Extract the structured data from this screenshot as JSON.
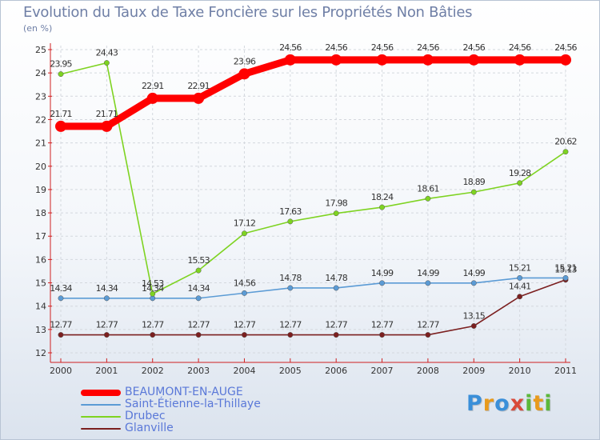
{
  "chart_data": {
    "type": "line",
    "title": "Evolution du Taux de Taxe Foncière sur les Propriétés Non Bâties",
    "ylabel": "(en %)",
    "xlabel": "",
    "categories": [
      "2000",
      "2001",
      "2002",
      "2003",
      "2004",
      "2005",
      "2006",
      "2007",
      "2008",
      "2009",
      "2010",
      "2011"
    ],
    "ylim": [
      12,
      25
    ],
    "yticks": [
      12,
      13,
      14,
      15,
      16,
      17,
      18,
      19,
      20,
      21,
      22,
      23,
      24,
      25
    ],
    "series": [
      {
        "name": "BEAUMONT-EN-AUGE",
        "color": "#ff0000",
        "values": [
          21.71,
          21.71,
          22.91,
          22.91,
          23.96,
          24.56,
          24.56,
          24.56,
          24.56,
          24.56,
          24.56,
          24.56
        ],
        "labels": [
          "21.71",
          "21.71",
          "22.91",
          "22.91",
          "23.96",
          "24.56",
          "24.56",
          "24.56",
          "24.56",
          "24.56",
          "24.56",
          "24.56"
        ]
      },
      {
        "name": "Saint-Étienne-la-Thillaye",
        "color": "#5b9bd5",
        "values": [
          14.34,
          14.34,
          14.34,
          14.34,
          14.56,
          14.78,
          14.78,
          14.99,
          14.99,
          14.99,
          15.21,
          15.21
        ],
        "labels": [
          "14.34",
          "14.34",
          "14.34",
          "14.34",
          "14.56",
          "14.78",
          "14.78",
          "14.99",
          "14.99",
          "14.99",
          "15.21",
          "15.21"
        ]
      },
      {
        "name": "Drubec",
        "color": "#7ed321",
        "values": [
          23.95,
          24.43,
          14.53,
          15.53,
          17.12,
          17.63,
          17.98,
          18.24,
          18.61,
          18.89,
          19.28,
          20.62
        ],
        "labels": [
          "23.95",
          "24.43",
          "14.53",
          "15.53",
          "17.12",
          "17.63",
          "17.98",
          "18.24",
          "18.61",
          "18.89",
          "19.28",
          "20.62"
        ]
      },
      {
        "name": "Glanville",
        "color": "#7b1f1f",
        "values": [
          12.77,
          12.77,
          12.77,
          12.77,
          12.77,
          12.77,
          12.77,
          12.77,
          12.77,
          13.15,
          14.41,
          15.13
        ],
        "labels": [
          "12.77",
          "12.77",
          "12.77",
          "12.77",
          "12.77",
          "12.77",
          "12.77",
          "12.77",
          "12.77",
          "13.15",
          "14.41",
          "15.13"
        ]
      }
    ]
  },
  "logo": {
    "p": "P",
    "r": "r",
    "o": "o",
    "x": "x",
    "i1": "i",
    "t": "t",
    "i2": "i"
  }
}
